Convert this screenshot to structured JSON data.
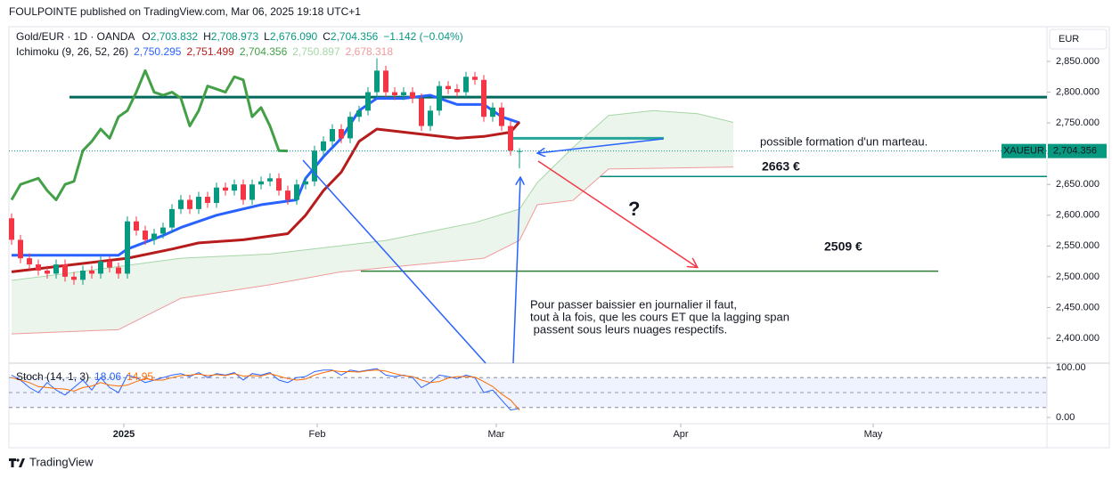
{
  "header": {
    "publisher": "FOULPOINTE published on TradingView.com, Mar 06, 2025 19:18 UTC+1",
    "brand": "TradingView",
    "currency": "EUR"
  },
  "chart_data": [
    {
      "type": "candlestick",
      "symbol": "Gold/EUR · 1D · OANDA",
      "ohlc_labels": [
        {
          "key": "O",
          "label": "2,703.832"
        },
        {
          "key": "H",
          "label": "2,708.973"
        },
        {
          "key": "L",
          "label": "2,676.090"
        },
        {
          "key": "C",
          "label": "2,704.356"
        }
      ],
      "change": "−1.142 (−0.04%)",
      "xlim": [
        -0.3,
        116.2
      ],
      "xticks": [
        {
          "value": 12.6,
          "label": "2025"
        },
        {
          "value": 34.3,
          "label": "Feb"
        },
        {
          "value": 54.4,
          "label": "Mar"
        },
        {
          "value": 75.1,
          "label": "Apr"
        },
        {
          "value": 96.7,
          "label": "May"
        }
      ],
      "ylim": [
        2359.5,
        2906.4
      ],
      "yticks": [
        {
          "value": 2400,
          "label": "2,400.000"
        },
        {
          "value": 2450,
          "label": "2,450.000"
        },
        {
          "value": 2500,
          "label": "2,500.000"
        },
        {
          "value": 2550,
          "label": "2,550.000"
        },
        {
          "value": 2600,
          "label": "2,600.000"
        },
        {
          "value": 2650,
          "label": "2,650.000"
        },
        {
          "value": 2700,
          "label": "2,700.000"
        },
        {
          "value": 2750,
          "label": "2,750.000"
        },
        {
          "value": 2800,
          "label": "2,800.000"
        },
        {
          "value": 2850,
          "label": "2,850.000"
        }
      ],
      "up_color": "#089981",
      "down_color": "#f23645",
      "open": [
        2595,
        2560,
        2530,
        2520,
        2510,
        2505,
        2520,
        2500,
        2495,
        2510,
        2505,
        2525,
        2515,
        2505,
        2590,
        2575,
        2560,
        2570,
        2580,
        2610,
        2625,
        2610,
        2630,
        2620,
        2645,
        2640,
        2650,
        2625,
        2650,
        2655,
        2660,
        2640,
        2625,
        2650,
        2655,
        2705,
        2720,
        2740,
        2725,
        2760,
        2770,
        2800,
        2835,
        2800,
        2795,
        2800,
        2790,
        2745,
        2770,
        2810,
        2805,
        2800,
        2825,
        2820,
        2760,
        2775,
        2745,
        2703.832
      ],
      "high": [
        2603,
        2568,
        2538,
        2528,
        2518,
        2528,
        2528,
        2508,
        2518,
        2518,
        2533,
        2533,
        2523,
        2598,
        2598,
        2583,
        2578,
        2588,
        2618,
        2633,
        2633,
        2638,
        2638,
        2653,
        2653,
        2658,
        2658,
        2658,
        2663,
        2668,
        2668,
        2648,
        2658,
        2663,
        2713,
        2728,
        2748,
        2748,
        2768,
        2778,
        2808,
        2855,
        2843,
        2808,
        2808,
        2808,
        2798,
        2778,
        2818,
        2818,
        2813,
        2833,
        2833,
        2828,
        2783,
        2783,
        2753,
        2708.973
      ],
      "low": [
        2552,
        2522,
        2512,
        2502,
        2497,
        2497,
        2492,
        2487,
        2487,
        2497,
        2497,
        2507,
        2497,
        2497,
        2567,
        2552,
        2552,
        2562,
        2572,
        2602,
        2602,
        2602,
        2612,
        2612,
        2632,
        2632,
        2617,
        2617,
        2642,
        2647,
        2632,
        2617,
        2617,
        2642,
        2647,
        2697,
        2712,
        2717,
        2717,
        2752,
        2762,
        2792,
        2792,
        2787,
        2787,
        2782,
        2737,
        2737,
        2762,
        2797,
        2792,
        2792,
        2812,
        2752,
        2752,
        2737,
        2697,
        2676.09
      ],
      "close": [
        2560,
        2530,
        2520,
        2510,
        2505,
        2520,
        2500,
        2495,
        2510,
        2505,
        2525,
        2515,
        2505,
        2590,
        2575,
        2560,
        2570,
        2580,
        2610,
        2625,
        2610,
        2630,
        2620,
        2645,
        2640,
        2650,
        2625,
        2650,
        2655,
        2660,
        2640,
        2625,
        2650,
        2655,
        2705,
        2720,
        2740,
        2725,
        2760,
        2770,
        2800,
        2835,
        2800,
        2795,
        2800,
        2790,
        2745,
        2770,
        2810,
        2805,
        2800,
        2825,
        2820,
        2760,
        2775,
        2745,
        2705,
        2704.356
      ],
      "indicator": {
        "name": "Ichimoku (9, 26, 52, 26)",
        "series": [
          {
            "color": "#2962ff",
            "width": 3,
            "value_label": "2,750.295",
            "x": [
              0,
              12,
              13,
              17,
              19,
              23,
              28,
              32,
              33,
              35,
              37,
              39,
              41,
              44,
              47,
              50,
              53,
              55,
              57
            ],
            "values": [
              2535,
              2535,
              2545,
              2567,
              2580,
              2600,
              2617,
              2625,
              2660,
              2695,
              2725,
              2770,
              2790,
              2790,
              2795,
              2780,
              2780,
              2760,
              2750.295
            ]
          },
          {
            "color": "#b71c1c",
            "width": 3,
            "value_label": "2,751.499",
            "x": [
              0,
              13,
              18,
              21,
              26,
              31,
              33,
              35,
              37,
              39,
              41,
              50,
              53,
              56,
              57
            ],
            "values": [
              2508,
              2530,
              2545,
              2555,
              2560,
              2570,
              2600,
              2640,
              2670,
              2720,
              2740,
              2725,
              2728,
              2735,
              2751.499
            ]
          },
          {
            "color": "#43a047",
            "width": 3,
            "value_label": "2,704.356",
            "x": [
              0,
              1,
              2,
              3,
              4,
              5,
              6,
              7,
              8,
              9,
              10,
              11,
              12,
              13,
              14,
              15,
              16,
              17,
              18,
              19,
              20,
              21,
              22,
              23,
              24,
              25,
              26,
              27,
              28,
              29,
              30,
              31
            ],
            "values": [
              2625,
              2650,
              2655,
              2660,
              2640,
              2625,
              2650,
              2655,
              2705,
              2720,
              2740,
              2725,
              2760,
              2770,
              2800,
              2835,
              2800,
              2795,
              2800,
              2790,
              2745,
              2770,
              2810,
              2805,
              2800,
              2825,
              2820,
              2760,
              2775,
              2745,
              2705,
              2704.356
            ]
          },
          {
            "color": "#a5d6a7",
            "width": 1,
            "value_label": "2,750.897",
            "x": [
              0,
              6,
              19,
              29,
              42,
              52,
              57,
              59,
              63,
              67,
              72,
              77,
              81
            ],
            "values": [
              2494,
              2505,
              2530,
              2537,
              2559,
              2588,
              2610,
              2653,
              2710,
              2762,
              2770,
              2765,
              2750.897
            ]
          },
          {
            "color": "#ef9a9a",
            "width": 1,
            "value_label": "2,678.318",
            "x": [
              0,
              12,
              19,
              29,
              37,
              53,
              57,
              59,
              63,
              67,
              81
            ],
            "values": [
              2407,
              2414,
              2465,
              2487,
              2508,
              2530,
              2559,
              2617,
              2624,
              2675,
              2678.318
            ]
          }
        ],
        "cloud_color": "#43a047"
      },
      "last_price": {
        "symbol": "XAUEUR",
        "value": 2704.356,
        "label": "2,704.356",
        "color": "#089981"
      },
      "levels": [
        {
          "value": 2792,
          "color": "#00695c",
          "width": 3,
          "x": [
            6.5,
            116.2
          ]
        },
        {
          "value": 2725,
          "color": "#26a69a",
          "width": 3,
          "x": [
            56.2,
            73.2
          ]
        },
        {
          "value": 2663,
          "color": "#00897b",
          "width": 1.5,
          "x": [
            66,
            116.2
          ],
          "label": "2663 €",
          "label_color": "#43a047"
        },
        {
          "value": 2509,
          "color": "#2e7d32",
          "width": 1.5,
          "x": [
            39.2,
            104
          ],
          "label": "2509 €",
          "label_color": "#43a047"
        }
      ],
      "annotations": [
        {
          "lines": [
            "possible formation d'un marteau."
          ],
          "color": "#2962ff"
        },
        {
          "lines": [
            "?"
          ],
          "color": "#f23645"
        },
        {
          "lines": [
            "Pour passer baissier en journalier il faut,",
            "tout à la fois, que les cours ET que la lagging span",
            " passent sous leurs nuages respectifs."
          ],
          "color": "#2962ff"
        }
      ]
    },
    {
      "type": "line",
      "title": "Stoch (14, 1, 3)",
      "ylim": [
        -10.7,
        110.7
      ],
      "yticks": [
        {
          "value": 100,
          "label": "100.00"
        },
        {
          "value": 0,
          "label": "0.00"
        }
      ],
      "bands": [
        80,
        50,
        20
      ],
      "series": [
        {
          "color": "#2962ff",
          "value_label": "18.06",
          "values": [
            85,
            75,
            60,
            50,
            70,
            55,
            45,
            60,
            75,
            55,
            80,
            60,
            50,
            85,
            80,
            70,
            75,
            80,
            85,
            88,
            82,
            90,
            80,
            88,
            85,
            90,
            75,
            88,
            85,
            90,
            75,
            70,
            80,
            82,
            92,
            95,
            95,
            85,
            95,
            92,
            95,
            98,
            85,
            82,
            85,
            80,
            60,
            70,
            85,
            82,
            78,
            85,
            80,
            50,
            55,
            35,
            15,
            18.06
          ]
        },
        {
          "color": "#ff6d00",
          "value_label": "14.95",
          "values": [
            80,
            75,
            70,
            62,
            60,
            58,
            57,
            53,
            60,
            63,
            70,
            65,
            63,
            65,
            72,
            78,
            75,
            75,
            80,
            84,
            85,
            87,
            84,
            86,
            84,
            88,
            83,
            84,
            83,
            88,
            83,
            78,
            75,
            77,
            85,
            90,
            94,
            92,
            92,
            91,
            94,
            95,
            93,
            88,
            84,
            82,
            75,
            70,
            72,
            79,
            82,
            82,
            81,
            72,
            62,
            47,
            35,
            14.95
          ]
        }
      ]
    }
  ]
}
